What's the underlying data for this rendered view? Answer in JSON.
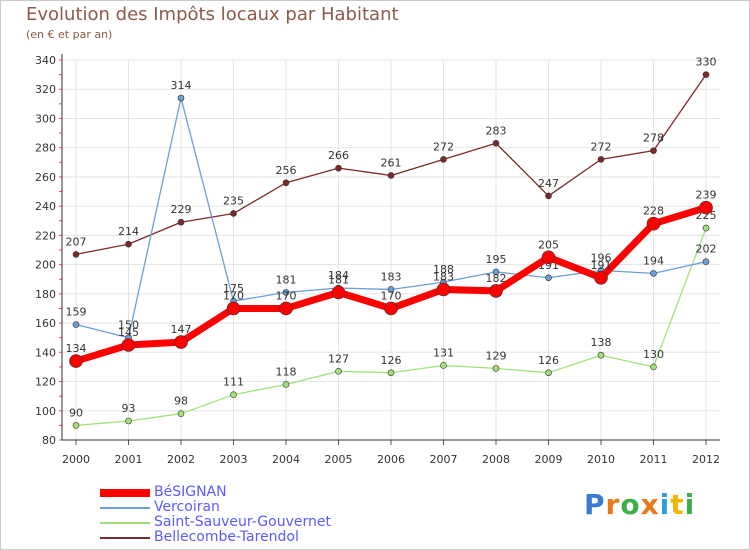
{
  "header": {
    "title": "Evolution des Impôts locaux par Habitant",
    "subtitle": "(en € et par an)"
  },
  "chart_data": {
    "type": "line",
    "title": "Evolution des Impôts locaux par Habitant",
    "subtitle": "(en € et par an)",
    "xlabel": "",
    "ylabel": "",
    "categories": [
      "2000",
      "2001",
      "2002",
      "2003",
      "2004",
      "2005",
      "2006",
      "2007",
      "2008",
      "2009",
      "2010",
      "2011",
      "2012"
    ],
    "ylim": [
      80,
      340
    ],
    "yticks": [
      80,
      100,
      120,
      140,
      160,
      180,
      200,
      220,
      240,
      260,
      280,
      300,
      320,
      340
    ],
    "grid": true,
    "legend_position": "bottom-left",
    "series": [
      {
        "name": "BéSIGNAN",
        "color": "#ff0000",
        "values": [
          134,
          145,
          147,
          170,
          170,
          181,
          170,
          183,
          182,
          205,
          191,
          228,
          239
        ],
        "labels": [
          "134",
          "145",
          "147",
          "170",
          "170",
          "181",
          "170",
          "183",
          "182",
          "205",
          "191",
          "228",
          "239"
        ]
      },
      {
        "name": "Vercoiran",
        "color": "#6b9fd4",
        "values": [
          159,
          150,
          314,
          175,
          181,
          184,
          183,
          188,
          195,
          191,
          196,
          194,
          202
        ],
        "labels": [
          "159",
          "150",
          "314",
          "175",
          "181",
          "184",
          "183",
          "188",
          "195",
          "191",
          "196",
          "194",
          "202"
        ]
      },
      {
        "name": "Saint-Sauveur-Gouvernet",
        "color": "#a4e07a",
        "values": [
          90,
          93,
          98,
          111,
          118,
          127,
          126,
          131,
          129,
          126,
          138,
          130,
          225
        ],
        "labels": [
          "90",
          "93",
          "98",
          "111",
          "118",
          "127",
          "126",
          "131",
          "129",
          "126",
          "138",
          "130",
          "225"
        ]
      },
      {
        "name": "Bellecombe-Tarendol",
        "color": "#7a2a2a",
        "values": [
          207,
          214,
          229,
          235,
          256,
          266,
          261,
          272,
          283,
          247,
          272,
          278,
          330
        ],
        "labels": [
          "207",
          "214",
          "229",
          "235",
          "256",
          "266",
          "261",
          "272",
          "283",
          "247",
          "272",
          "278",
          "330"
        ]
      }
    ]
  },
  "logo": {
    "letters": [
      "P",
      "r",
      "o",
      "x",
      "i",
      "t",
      "i"
    ],
    "colors": [
      "#3a7bd5",
      "#e87a1e",
      "#3fae49",
      "#e87a1e",
      "#2e9fd9",
      "#f2b705",
      "#3fae49"
    ]
  }
}
